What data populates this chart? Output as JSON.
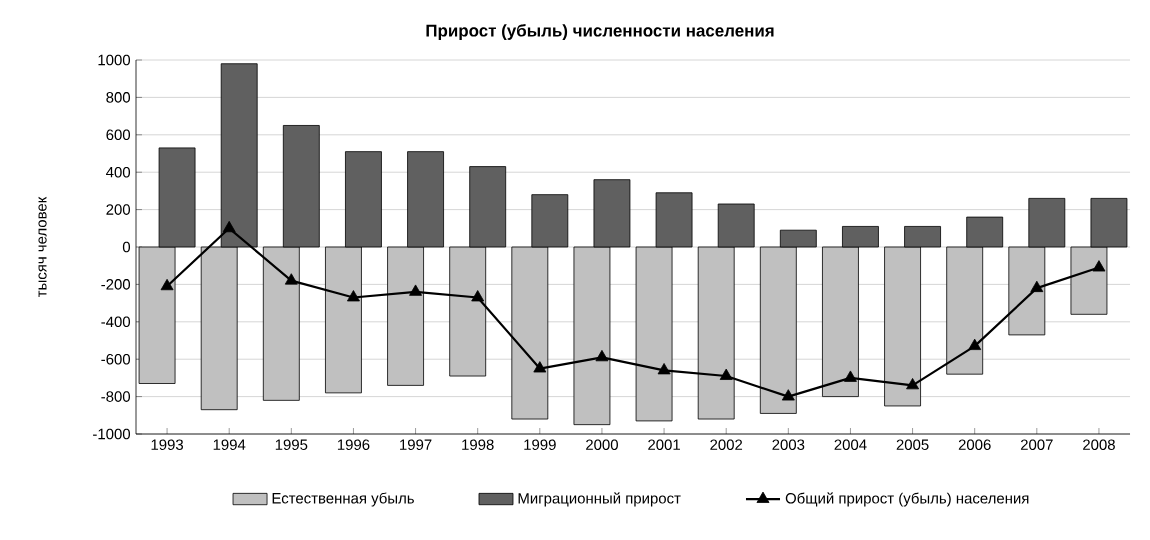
{
  "chart_data": {
    "type": "bar",
    "title": "Прирост (убыль) численности населения",
    "ylabel": "тысяч человек",
    "categories": [
      "1993",
      "1994",
      "1995",
      "1996",
      "1997",
      "1998",
      "1999",
      "2000",
      "2001",
      "2002",
      "2003",
      "2004",
      "2005",
      "2006",
      "2007",
      "2008"
    ],
    "series": [
      {
        "name": "Естественная убыль",
        "color": "#c0c0c0",
        "values": [
          -730,
          -870,
          -820,
          -780,
          -740,
          -690,
          -920,
          -950,
          -930,
          -920,
          -890,
          -800,
          -850,
          -680,
          -470,
          -360
        ]
      },
      {
        "name": "Миграционный прирост",
        "color": "#606060",
        "values": [
          530,
          980,
          650,
          510,
          510,
          430,
          280,
          360,
          290,
          230,
          90,
          110,
          110,
          160,
          260,
          260
        ]
      },
      {
        "name": "Общий прирост (убыль) населения",
        "type": "line",
        "color": "#000000",
        "marker": "triangle",
        "values": [
          -210,
          100,
          -180,
          -270,
          -240,
          -270,
          -650,
          -590,
          -660,
          -690,
          -800,
          -700,
          -740,
          -530,
          -220,
          -110
        ]
      }
    ],
    "ylim": [
      -1000,
      1000
    ],
    "yticks": [
      -1000,
      -800,
      -600,
      -400,
      -200,
      0,
      200,
      400,
      600,
      800,
      1000
    ],
    "grid": "y",
    "legend": "bottom"
  }
}
